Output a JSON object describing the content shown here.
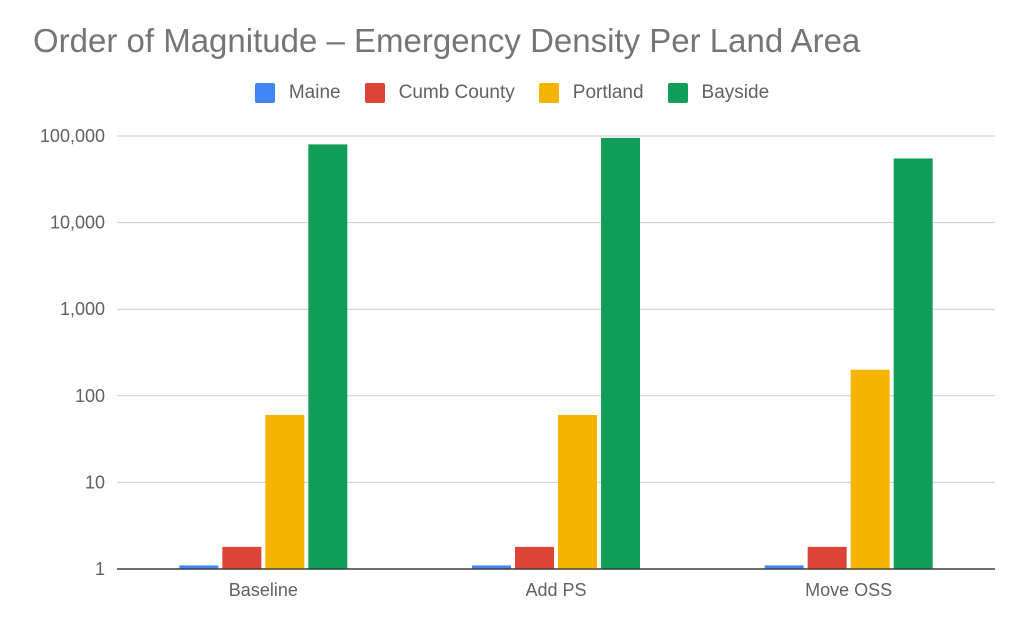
{
  "chart_data": {
    "type": "bar",
    "title": "Order of Magnitude – Emergency Density Per Land Area",
    "xlabel": "",
    "ylabel": "",
    "yscale": "log",
    "ylim": [
      1,
      100000
    ],
    "yticks": [
      "1",
      "10",
      "100",
      "1,000",
      "10,000",
      "100,000"
    ],
    "ytick_values": [
      1,
      10,
      100,
      1000,
      10000,
      100000
    ],
    "grid": true,
    "legend_position": "top",
    "categories": [
      "Baseline",
      "Add PS",
      "Move OSS"
    ],
    "series": [
      {
        "name": "Maine",
        "color": "#4285F4",
        "values": [
          1.1,
          1.1,
          1.1
        ]
      },
      {
        "name": "Cumb County",
        "color": "#DB4437",
        "values": [
          1.8,
          1.8,
          1.8
        ]
      },
      {
        "name": "Portland",
        "color": "#F4B400",
        "values": [
          60,
          60,
          200
        ]
      },
      {
        "name": "Bayside",
        "color": "#0F9D58",
        "values": [
          80000,
          95000,
          55000
        ]
      }
    ]
  }
}
